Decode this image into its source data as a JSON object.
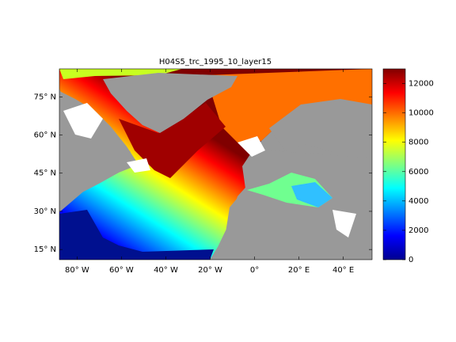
{
  "chart_data": {
    "type": "map",
    "title": "H04S5_trc_1995_10_layer15",
    "xlim": [
      -88,
      53
    ],
    "ylim": [
      11,
      86
    ],
    "xticks": [
      {
        "value": -80,
        "label": "80° W"
      },
      {
        "value": -60,
        "label": "60° W"
      },
      {
        "value": -40,
        "label": "40° W"
      },
      {
        "value": -20,
        "label": "20° W"
      },
      {
        "value": 0,
        "label": "0°"
      },
      {
        "value": 20,
        "label": "20° E"
      },
      {
        "value": 40,
        "label": "40° E"
      }
    ],
    "yticks": [
      {
        "value": 15,
        "label": "15° N"
      },
      {
        "value": 30,
        "label": "30° N"
      },
      {
        "value": 45,
        "label": "45° N"
      },
      {
        "value": 60,
        "label": "60° N"
      },
      {
        "value": 75,
        "label": "75° N"
      }
    ],
    "colorbar": {
      "lim": [
        0,
        13000
      ],
      "ticks": [
        0,
        2000,
        4000,
        6000,
        8000,
        10000,
        12000
      ],
      "colormap": [
        "#00008f",
        "#0000ff",
        "#0080ff",
        "#00ffff",
        "#80ff80",
        "#ffff00",
        "#ff8000",
        "#ff0000",
        "#800000"
      ]
    }
  }
}
